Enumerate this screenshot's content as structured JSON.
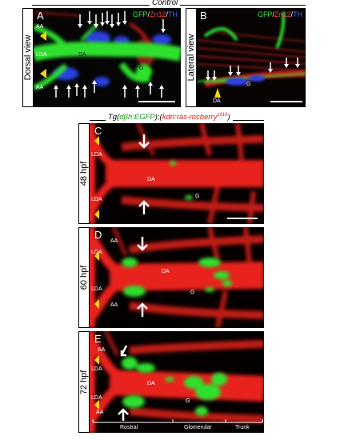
{
  "header_top": {
    "title": "Control"
  },
  "panel_a": {
    "letter": "A",
    "view_label": "Dorsal view",
    "channels": [
      {
        "text": "GFP",
        "color": "#3ee03e"
      },
      {
        "text": "/",
        "color": "#ffffff"
      },
      {
        "text": "Zn12",
        "color": "#ff3a3a"
      },
      {
        "text": "/",
        "color": "#ffffff"
      },
      {
        "text": "TH",
        "color": "#4a6bff"
      }
    ],
    "labels": {
      "aa_top": "AA",
      "lda": "LDA",
      "da": "DA",
      "aa_bottom": "AA",
      "g": "G"
    }
  },
  "panel_b": {
    "letter": "B",
    "view_label": "Lateral view",
    "channels": [
      {
        "text": "GFP",
        "color": "#3ee03e"
      },
      {
        "text": "/",
        "color": "#ffffff"
      },
      {
        "text": "Zn12",
        "color": "#ff3a3a"
      },
      {
        "text": "/",
        "color": "#ffffff"
      },
      {
        "text": "TH",
        "color": "#4a6bff"
      }
    ],
    "labels": {
      "da": "DA",
      "g": "G"
    }
  },
  "transgene_header": {
    "prefix": "Tg(",
    "green_part": "dβh:EGFP",
    "middle": ");(",
    "red_part": "kdrl:ras-mcherry",
    "superscript": "s916",
    "suffix": ")"
  },
  "panel_c": {
    "letter": "C",
    "stage_label": "48 hpf",
    "labels": {
      "lda_top": "LDA",
      "da": "DA",
      "lda_bottom": "LDA",
      "g": "G"
    }
  },
  "panel_d": {
    "letter": "D",
    "stage_label": "60 hpf",
    "labels": {
      "aa_top": "AA",
      "lda_top": "LDA",
      "da": "DA",
      "lda_bottom": "LDA",
      "aa_bottom": "AA",
      "g": "G"
    }
  },
  "panel_e": {
    "letter": "E",
    "stage_label": "72 hpf",
    "labels": {
      "aa_top": "AA",
      "lda_top": "LDA",
      "da": "DA",
      "lda_bottom": "LDA",
      "aa_bottom": "AA",
      "g": "G"
    },
    "regions": [
      "Rostral",
      "Glomerular",
      "Trunk"
    ]
  },
  "colors": {
    "vessel_red": "#e8241b",
    "gfp_green": "#2fe02f",
    "th_blue": "#2a3fe0",
    "arrowhead_yellow": "#f2d21b"
  }
}
